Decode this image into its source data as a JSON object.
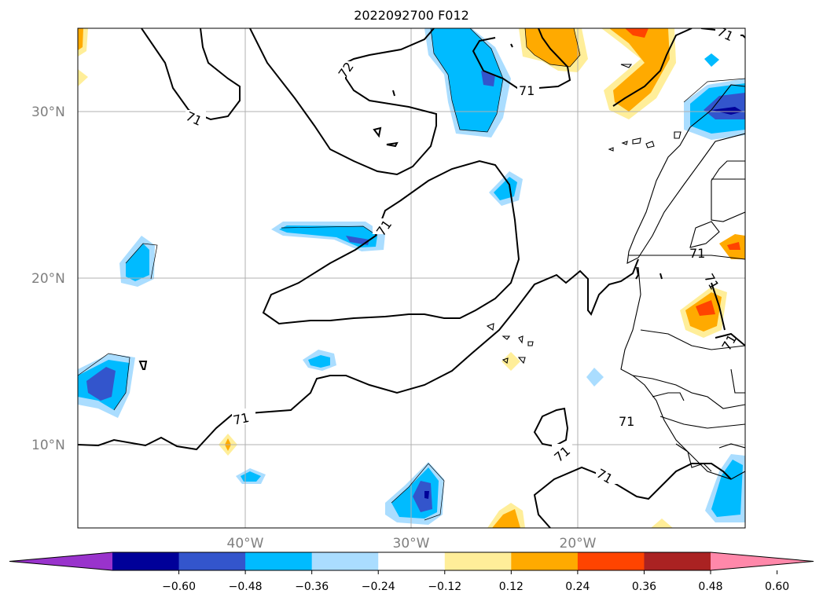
{
  "title": "2022092700 F012",
  "map": {
    "lat_labels": [
      "30°N",
      "20°N",
      "10°N"
    ],
    "lon_labels": [
      "40°W",
      "30°W",
      "20°W"
    ],
    "contour_labels": [
      "72",
      "71",
      "71",
      "71",
      "71",
      "71",
      "71",
      "71",
      "71",
      "71",
      "71",
      "71"
    ]
  },
  "colorbar": {
    "levels": [
      "−0.60",
      "−0.48",
      "−0.36",
      "−0.24",
      "−0.12",
      "0.12",
      "0.24",
      "0.36",
      "0.48",
      "0.60"
    ],
    "colors": [
      "#9933cc",
      "#000099",
      "#3355cc",
      "#00bbff",
      "#aaddff",
      "#ffffff",
      "#ffee99",
      "#ffaa00",
      "#ff4400",
      "#aa2222",
      "#ff88aa"
    ]
  }
}
